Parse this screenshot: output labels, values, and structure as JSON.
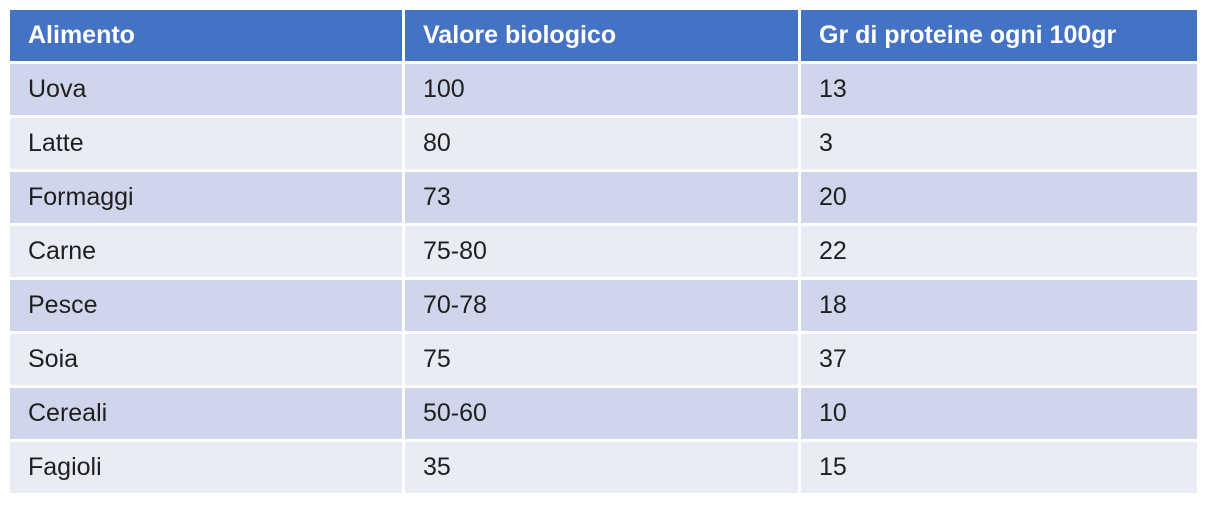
{
  "table": {
    "headers": [
      "Alimento",
      "Valore biologico",
      "Gr di proteine ogni 100gr"
    ],
    "rows": [
      [
        "Uova",
        "100",
        "13"
      ],
      [
        "Latte",
        "80",
        "3"
      ],
      [
        "Formaggi",
        "73",
        "20"
      ],
      [
        "Carne",
        "75-80",
        "22"
      ],
      [
        "Pesce",
        "70-78",
        "18"
      ],
      [
        "Soia",
        "75",
        "37"
      ],
      [
        "Cereali",
        "50-60",
        "10"
      ],
      [
        "Fagioli",
        "35",
        "15"
      ]
    ],
    "colors": {
      "header_bg": "#4472c4",
      "header_text": "#ffffff",
      "row_odd_bg": "#cfd5ea",
      "row_even_bg": "#e9ebf5"
    }
  }
}
